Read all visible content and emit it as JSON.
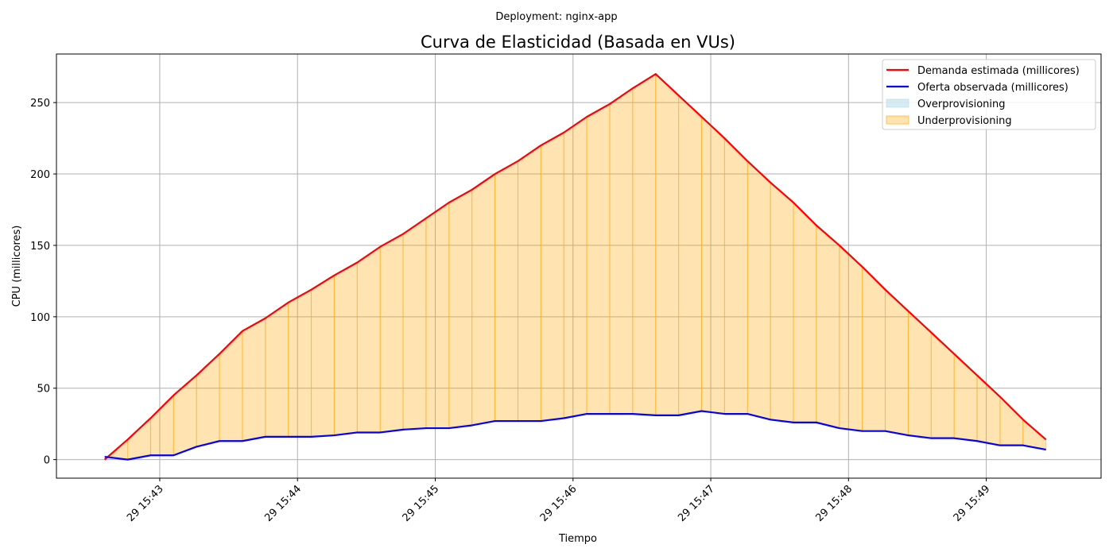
{
  "chart_data": {
    "type": "line",
    "suptitle": "Deployment: nginx-app",
    "title": "Curva de Elasticidad (Basada en VUs)",
    "xlabel": "Tiempo",
    "ylabel": "CPU (millicores)",
    "x_ticks": [
      "29 15:43",
      "29 15:44",
      "29 15:45",
      "29 15:46",
      "29 15:47",
      "29 15:48",
      "29 15:49"
    ],
    "y_ticks": [
      0,
      50,
      100,
      150,
      200,
      250
    ],
    "ylim": [
      -13,
      284
    ],
    "xlim": [
      "15:42:15",
      "15:49:50"
    ],
    "grid": true,
    "legend_position": "upper right",
    "x": [
      "15:42:36",
      "15:42:46",
      "15:42:56",
      "15:43:06",
      "15:43:16",
      "15:43:26",
      "15:43:36",
      "15:43:46",
      "15:43:56",
      "15:44:06",
      "15:44:16",
      "15:44:26",
      "15:44:36",
      "15:44:46",
      "15:44:56",
      "15:45:06",
      "15:45:16",
      "15:45:26",
      "15:45:36",
      "15:45:46",
      "15:45:56",
      "15:46:06",
      "15:46:16",
      "15:46:26",
      "15:46:36",
      "15:46:46",
      "15:46:56",
      "15:47:06",
      "15:47:16",
      "15:47:26",
      "15:47:36",
      "15:47:46",
      "15:47:56",
      "15:48:06",
      "15:48:16",
      "15:48:26",
      "15:48:36",
      "15:48:46",
      "15:48:56",
      "15:49:06",
      "15:49:16",
      "15:49:26"
    ],
    "series": [
      {
        "name": "Demanda estimada (millicores)",
        "color": "#ff0000",
        "values": [
          0,
          14,
          29,
          45,
          59,
          74,
          90,
          99,
          110,
          119,
          129,
          138,
          149,
          158,
          169,
          180,
          189,
          200,
          209,
          220,
          229,
          240,
          249,
          260,
          270,
          255,
          240,
          225,
          209,
          194,
          180,
          164,
          150,
          135,
          119,
          104,
          89,
          74,
          59,
          44,
          28,
          14
        ]
      },
      {
        "name": "Oferta observada (millicores)",
        "color": "#0000ff",
        "values": [
          2,
          0,
          3,
          3,
          9,
          13,
          13,
          16,
          16,
          16,
          17,
          19,
          19,
          21,
          22,
          22,
          24,
          27,
          27,
          27,
          29,
          32,
          32,
          32,
          31,
          31,
          34,
          32,
          32,
          28,
          26,
          26,
          22,
          20,
          20,
          17,
          15,
          15,
          13,
          10,
          10,
          7
        ]
      }
    ],
    "fills": [
      {
        "name": "Overprovisioning",
        "color": "#add8e6",
        "condition": "oferta > demanda"
      },
      {
        "name": "Underprovisioning",
        "color": "#ffa500",
        "condition": "demanda > oferta"
      }
    ]
  }
}
